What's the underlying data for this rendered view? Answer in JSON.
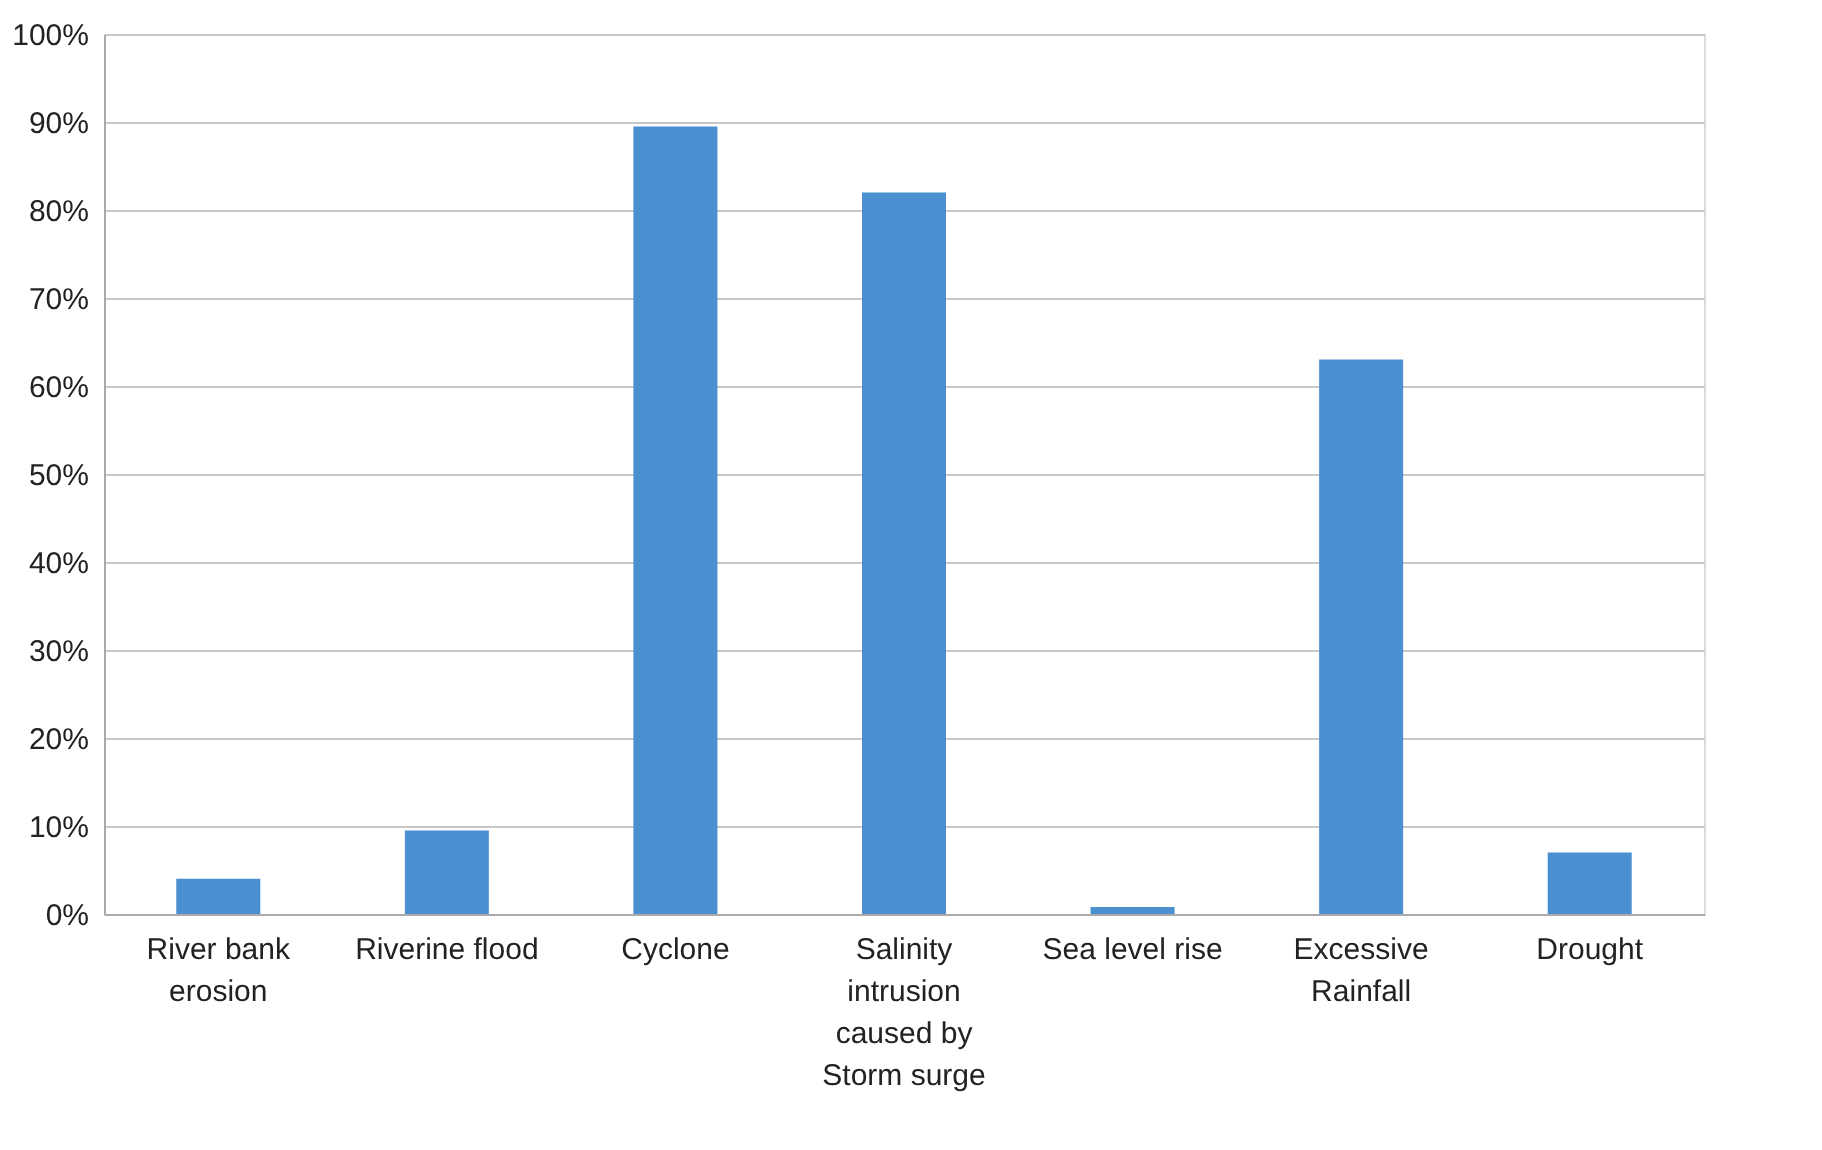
{
  "chart_data": {
    "type": "bar",
    "categories": [
      "River bank erosion",
      "Riverine flood",
      "Cyclone",
      "Salinity intrusion caused by Storm surge",
      "Sea level rise",
      "Excessive Rainfall",
      "Drought"
    ],
    "values": [
      4,
      9.5,
      89.5,
      82,
      0.8,
      63,
      7
    ],
    "color": "#4a8fd0",
    "ylim": [
      0,
      100
    ],
    "yticks": [
      {
        "value": 0,
        "label": "0%"
      },
      {
        "value": 10,
        "label": "10%"
      },
      {
        "value": 20,
        "label": "20%"
      },
      {
        "value": 30,
        "label": "30%"
      },
      {
        "value": 40,
        "label": "40%"
      },
      {
        "value": 50,
        "label": "50%"
      },
      {
        "value": 60,
        "label": "60%"
      },
      {
        "value": 70,
        "label": "70%"
      },
      {
        "value": 80,
        "label": "80%"
      },
      {
        "value": 90,
        "label": "90%"
      },
      {
        "value": 100,
        "label": "100%"
      }
    ],
    "grid": "y"
  }
}
